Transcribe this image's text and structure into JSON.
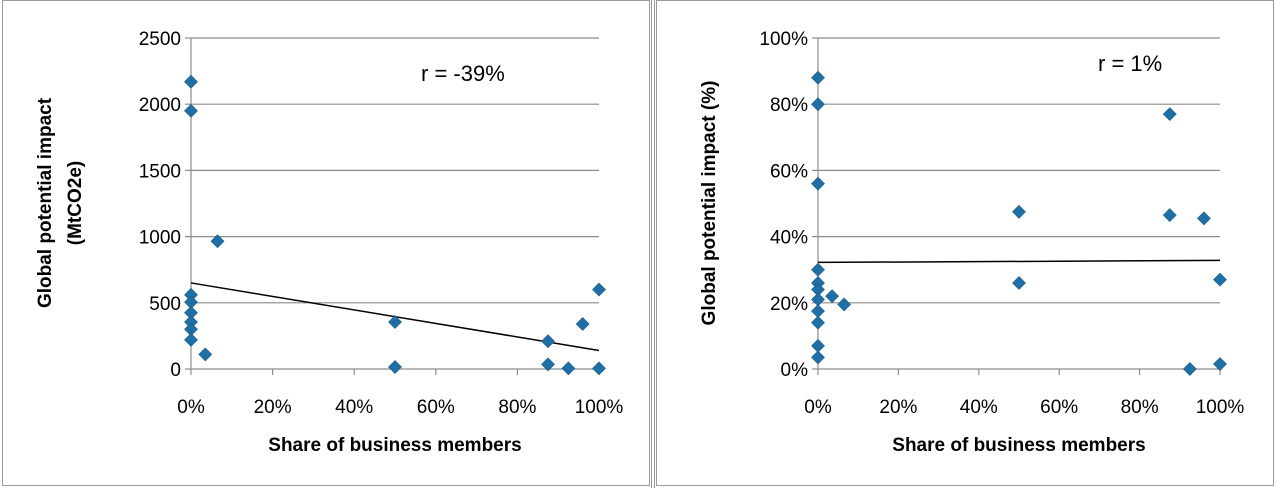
{
  "chart_data": [
    {
      "type": "scatter",
      "xlabel": "Share of business members",
      "ylabel_lines": [
        "Global potential impact",
        "(MtCO2e)"
      ],
      "annotation": "r = -39%",
      "xlim": [
        0,
        100
      ],
      "ylim": [
        0,
        2500
      ],
      "x_ticks": [
        0,
        20,
        40,
        60,
        80,
        100
      ],
      "x_tick_labels": [
        "0%",
        "20%",
        "40%",
        "60%",
        "80%",
        "100%"
      ],
      "y_ticks": [
        0,
        500,
        1000,
        1500,
        2000,
        2500
      ],
      "y_tick_labels": [
        "0",
        "500",
        "1000",
        "1500",
        "2000",
        "2500"
      ],
      "grid": "horizontal",
      "marker_color": "#1f6fa5",
      "points": [
        {
          "x": 0,
          "y": 2170
        },
        {
          "x": 0,
          "y": 1950
        },
        {
          "x": 0,
          "y": 560
        },
        {
          "x": 0,
          "y": 505
        },
        {
          "x": 0,
          "y": 425
        },
        {
          "x": 0,
          "y": 355
        },
        {
          "x": 0,
          "y": 300
        },
        {
          "x": 0,
          "y": 220
        },
        {
          "x": 3.5,
          "y": 110
        },
        {
          "x": 6.5,
          "y": 965
        },
        {
          "x": 50,
          "y": 355
        },
        {
          "x": 50,
          "y": 15
        },
        {
          "x": 87.5,
          "y": 210
        },
        {
          "x": 87.5,
          "y": 35
        },
        {
          "x": 92.5,
          "y": 5
        },
        {
          "x": 96,
          "y": 340
        },
        {
          "x": 100,
          "y": 600
        },
        {
          "x": 100,
          "y": 5
        }
      ],
      "trendline": {
        "x": [
          0,
          100
        ],
        "y": [
          650,
          140
        ]
      }
    },
    {
      "type": "scatter",
      "xlabel": "Share of business members",
      "ylabel_lines": [
        "Global potential impact (%)"
      ],
      "annotation": "r = 1%",
      "xlim": [
        0,
        100
      ],
      "ylim": [
        0,
        100
      ],
      "x_ticks": [
        0,
        20,
        40,
        60,
        80,
        100
      ],
      "x_tick_labels": [
        "0%",
        "20%",
        "40%",
        "60%",
        "80%",
        "100%"
      ],
      "y_ticks": [
        0,
        20,
        40,
        60,
        80,
        100
      ],
      "y_tick_labels": [
        "0%",
        "20%",
        "40%",
        "60%",
        "80%",
        "100%"
      ],
      "grid": "horizontal",
      "marker_color": "#1f6fa5",
      "points": [
        {
          "x": 0,
          "y": 88
        },
        {
          "x": 0,
          "y": 80
        },
        {
          "x": 0,
          "y": 56
        },
        {
          "x": 0,
          "y": 30
        },
        {
          "x": 0,
          "y": 26
        },
        {
          "x": 0,
          "y": 24
        },
        {
          "x": 0,
          "y": 21
        },
        {
          "x": 0,
          "y": 17.5
        },
        {
          "x": 0,
          "y": 14
        },
        {
          "x": 0,
          "y": 7
        },
        {
          "x": 0,
          "y": 3.5
        },
        {
          "x": 3.5,
          "y": 22
        },
        {
          "x": 6.5,
          "y": 19.5
        },
        {
          "x": 50,
          "y": 47.5
        },
        {
          "x": 50,
          "y": 26
        },
        {
          "x": 87.5,
          "y": 77
        },
        {
          "x": 87.5,
          "y": 46.5
        },
        {
          "x": 92.5,
          "y": 0
        },
        {
          "x": 96,
          "y": 45.5
        },
        {
          "x": 100,
          "y": 27
        },
        {
          "x": 100,
          "y": 1.5
        }
      ],
      "trendline": {
        "x": [
          0,
          100
        ],
        "y": [
          32.2,
          32.8
        ]
      }
    }
  ]
}
